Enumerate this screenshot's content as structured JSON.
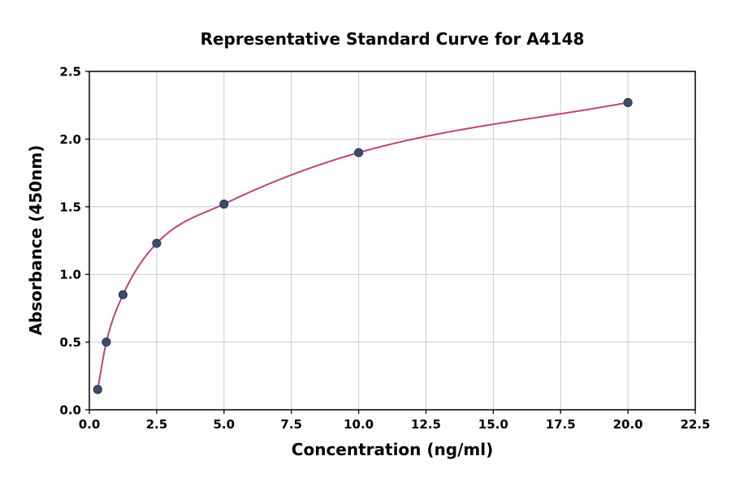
{
  "chart_data": {
    "type": "scatter",
    "title": "Representative Standard Curve for A4148",
    "xlabel": "Concentration (ng/ml)",
    "ylabel": "Absorbance (450nm)",
    "xlim": [
      0,
      22.5
    ],
    "ylim": [
      0,
      2.5
    ],
    "xticks": [
      0,
      2.5,
      5,
      7.5,
      10,
      12.5,
      15,
      17.5,
      20,
      22.5
    ],
    "xtick_labels": [
      "0.0",
      "2.5",
      "5.0",
      "7.5",
      "10.0",
      "12.5",
      "15.0",
      "17.5",
      "20.0",
      "22.5"
    ],
    "yticks": [
      0,
      0.5,
      1,
      1.5,
      2,
      2.5
    ],
    "ytick_labels": [
      "0.0",
      "0.5",
      "1.0",
      "1.5",
      "2.0",
      "2.5"
    ],
    "grid": true,
    "legend": "none",
    "grid_color": "#cccccc",
    "axis_color": "#000000",
    "series": [
      {
        "name": "fitted-curve",
        "type": "line",
        "color": "#c2436b"
      },
      {
        "name": "standard-points",
        "type": "scatter",
        "x": [
          0.31,
          0.63,
          1.25,
          2.5,
          5,
          10,
          20
        ],
        "y": [
          0.15,
          0.5,
          0.85,
          1.23,
          1.52,
          1.9,
          2.27
        ],
        "marker_color": "#3a4e6a",
        "marker_edge_color": "#2c3e55"
      }
    ]
  }
}
